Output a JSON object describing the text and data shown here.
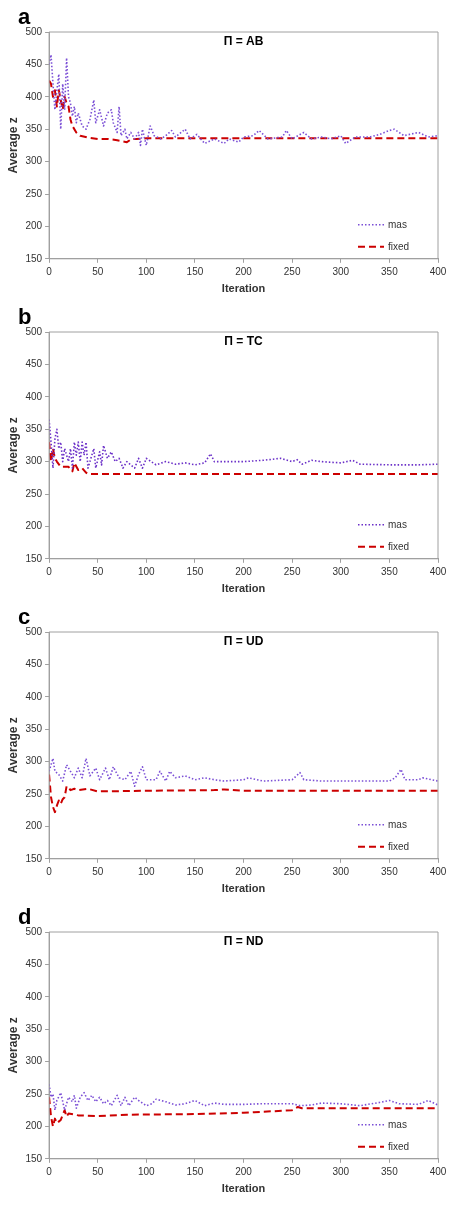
{
  "chart_data": [
    {
      "type": "line",
      "title": "Π = AB",
      "annotations": [
        "a"
      ],
      "xlabel": "Iteration",
      "ylabel": "Average z",
      "xlim": [
        0,
        400
      ],
      "xticks": [
        0,
        50,
        100,
        150,
        200,
        250,
        300,
        350,
        400
      ],
      "ylim": [
        150,
        500
      ],
      "yticks": [
        150,
        200,
        250,
        300,
        350,
        400,
        450,
        500
      ],
      "legend": "bottom right",
      "marker": "none",
      "series": [
        {
          "name": "mas",
          "color": "#7b4fd6",
          "line_style": "dotted",
          "x": [
            0,
            2,
            4,
            6,
            8,
            10,
            12,
            14,
            16,
            18,
            20,
            22,
            24,
            26,
            28,
            30,
            34,
            38,
            42,
            46,
            48,
            52,
            56,
            60,
            64,
            66,
            70,
            72,
            74,
            78,
            80,
            84,
            88,
            92,
            94,
            96,
            100,
            104,
            108,
            115,
            120,
            126,
            130,
            140,
            145,
            152,
            160,
            170,
            180,
            185,
            195,
            200,
            210,
            216,
            225,
            240,
            244,
            250,
            262,
            270,
            280,
            290,
            300,
            305,
            315,
            330,
            340,
            350,
            355,
            365,
            380,
            390,
            400
          ],
          "values": [
            450,
            465,
            420,
            380,
            410,
            435,
            350,
            420,
            380,
            460,
            400,
            390,
            370,
            385,
            360,
            375,
            355,
            350,
            365,
            395,
            360,
            380,
            355,
            375,
            380,
            360,
            345,
            385,
            340,
            350,
            335,
            345,
            335,
            345,
            325,
            350,
            325,
            355,
            340,
            335,
            340,
            348,
            338,
            350,
            335,
            342,
            328,
            335,
            328,
            335,
            330,
            338,
            340,
            348,
            335,
            338,
            348,
            335,
            345,
            335,
            338,
            335,
            340,
            328,
            338,
            338,
            342,
            348,
            350,
            340,
            345,
            338,
            340
          ]
        },
        {
          "name": "fixed",
          "color": "#cc0000",
          "line_style": "dashed",
          "x": [
            0,
            2,
            4,
            6,
            8,
            10,
            12,
            14,
            16,
            18,
            20,
            22,
            24,
            28,
            32,
            40,
            50,
            60,
            70,
            80,
            85,
            90,
            100,
            400
          ],
          "values": [
            425,
            420,
            400,
            410,
            385,
            410,
            395,
            380,
            400,
            390,
            385,
            365,
            355,
            345,
            340,
            337,
            335,
            335,
            333,
            330,
            335,
            335,
            336,
            336
          ]
        }
      ]
    },
    {
      "type": "line",
      "title": "Π = TC",
      "annotations": [
        "b"
      ],
      "xlabel": "Iteration",
      "ylabel": "Average z",
      "xlim": [
        0,
        400
      ],
      "xticks": [
        0,
        50,
        100,
        150,
        200,
        250,
        300,
        350,
        400
      ],
      "ylim": [
        150,
        500
      ],
      "yticks": [
        150,
        200,
        250,
        300,
        350,
        400,
        450,
        500
      ],
      "legend": "bottom right",
      "marker": "none",
      "series": [
        {
          "name": "mas",
          "color": "#6a2fc8",
          "line_style": "dotted",
          "x": [
            0,
            2,
            4,
            6,
            8,
            10,
            12,
            14,
            16,
            18,
            20,
            22,
            24,
            26,
            28,
            30,
            32,
            34,
            36,
            38,
            40,
            42,
            46,
            48,
            52,
            54,
            56,
            60,
            64,
            68,
            72,
            76,
            80,
            88,
            92,
            96,
            100,
            110,
            120,
            130,
            140,
            150,
            160,
            166,
            170,
            200,
            220,
            238,
            250,
            255,
            260,
            270,
            280,
            300,
            312,
            320,
            350,
            380,
            400
          ],
          "values": [
            365,
            330,
            290,
            335,
            350,
            320,
            330,
            300,
            320,
            310,
            300,
            320,
            290,
            330,
            310,
            330,
            300,
            330,
            310,
            330,
            290,
            300,
            320,
            290,
            315,
            295,
            325,
            305,
            315,
            300,
            305,
            290,
            300,
            290,
            305,
            290,
            305,
            295,
            300,
            296,
            298,
            295,
            298,
            312,
            300,
            300,
            302,
            305,
            300,
            303,
            296,
            302,
            300,
            298,
            302,
            296,
            295,
            295,
            296
          ]
        },
        {
          "name": "fixed",
          "color": "#cc0000",
          "line_style": "dashed",
          "x": [
            0,
            2,
            4,
            6,
            8,
            12,
            20,
            24,
            26,
            30,
            34,
            38,
            40,
            400
          ],
          "values": [
            330,
            300,
            320,
            305,
            300,
            292,
            292,
            285,
            298,
            287,
            290,
            283,
            281,
            281
          ]
        }
      ]
    },
    {
      "type": "line",
      "title": "Π = UD",
      "annotations": [
        "c"
      ],
      "xlabel": "Iteration",
      "ylabel": "Average z",
      "xlim": [
        0,
        400
      ],
      "xticks": [
        0,
        50,
        100,
        150,
        200,
        250,
        300,
        350,
        400
      ],
      "ylim": [
        150,
        500
      ],
      "yticks": [
        150,
        200,
        250,
        300,
        350,
        400,
        450,
        500
      ],
      "legend": "bottom right",
      "marker": "none",
      "series": [
        {
          "name": "mas",
          "color": "#7b4fd6",
          "line_style": "dotted",
          "x": [
            0,
            4,
            6,
            10,
            14,
            18,
            22,
            26,
            30,
            34,
            38,
            42,
            48,
            52,
            58,
            62,
            66,
            72,
            78,
            84,
            88,
            92,
            96,
            100,
            110,
            114,
            120,
            124,
            130,
            140,
            150,
            160,
            170,
            180,
            200,
            205,
            220,
            250,
            258,
            262,
            280,
            300,
            330,
            350,
            356,
            362,
            366,
            380,
            384,
            400
          ],
          "values": [
            285,
            305,
            285,
            280,
            270,
            295,
            285,
            275,
            290,
            275,
            305,
            278,
            290,
            272,
            290,
            272,
            292,
            275,
            272,
            285,
            262,
            280,
            292,
            272,
            272,
            285,
            270,
            285,
            275,
            278,
            272,
            275,
            272,
            270,
            272,
            275,
            270,
            272,
            283,
            272,
            270,
            270,
            270,
            270,
            275,
            288,
            272,
            272,
            275,
            270
          ]
        },
        {
          "name": "fixed",
          "color": "#cc0000",
          "line_style": "dashed",
          "x": [
            0,
            2,
            4,
            6,
            8,
            10,
            12,
            14,
            16,
            18,
            20,
            22,
            26,
            30,
            40,
            50,
            100,
            170,
            180,
            200,
            400
          ],
          "values": [
            280,
            245,
            230,
            222,
            232,
            240,
            235,
            242,
            245,
            262,
            260,
            256,
            258,
            256,
            258,
            254,
            255,
            256,
            257,
            255,
            255
          ]
        }
      ]
    },
    {
      "type": "line",
      "title": "Π = ND",
      "annotations": [
        "d"
      ],
      "xlabel": "Iteration",
      "ylabel": "Average z",
      "xlim": [
        0,
        400
      ],
      "xticks": [
        0,
        50,
        100,
        150,
        200,
        250,
        300,
        350,
        400
      ],
      "ylim": [
        150,
        500
      ],
      "yticks": [
        150,
        200,
        250,
        300,
        350,
        400,
        450,
        500
      ],
      "legend": "bottom right",
      "marker": "none",
      "series": [
        {
          "name": "mas",
          "color": "#7b4fd6",
          "line_style": "dotted",
          "x": [
            0,
            2,
            4,
            6,
            8,
            12,
            16,
            20,
            24,
            26,
            28,
            32,
            36,
            40,
            44,
            48,
            52,
            56,
            60,
            64,
            70,
            74,
            78,
            82,
            88,
            92,
            100,
            106,
            110,
            120,
            130,
            140,
            150,
            160,
            170,
            180,
            200,
            220,
            250,
            258,
            270,
            280,
            300,
            320,
            340,
            350,
            360,
            380,
            390,
            400
          ],
          "values": [
            265,
            245,
            250,
            225,
            240,
            252,
            225,
            245,
            238,
            248,
            228,
            245,
            252,
            240,
            248,
            238,
            245,
            235,
            240,
            232,
            248,
            232,
            245,
            232,
            245,
            240,
            232,
            235,
            242,
            238,
            233,
            235,
            240,
            232,
            236,
            234,
            234,
            235,
            235,
            232,
            233,
            236,
            235,
            232,
            237,
            240,
            235,
            234,
            240,
            233
          ]
        },
        {
          "name": "fixed",
          "color": "#cc0000",
          "line_style": "dashed",
          "x": [
            0,
            2,
            4,
            6,
            8,
            12,
            16,
            18,
            20,
            30,
            50,
            80,
            150,
            200,
            250,
            256,
            260,
            400
          ],
          "values": [
            245,
            215,
            200,
            212,
            205,
            210,
            225,
            215,
            220,
            217,
            216,
            218,
            219,
            221,
            225,
            230,
            228,
            228
          ]
        }
      ]
    }
  ]
}
